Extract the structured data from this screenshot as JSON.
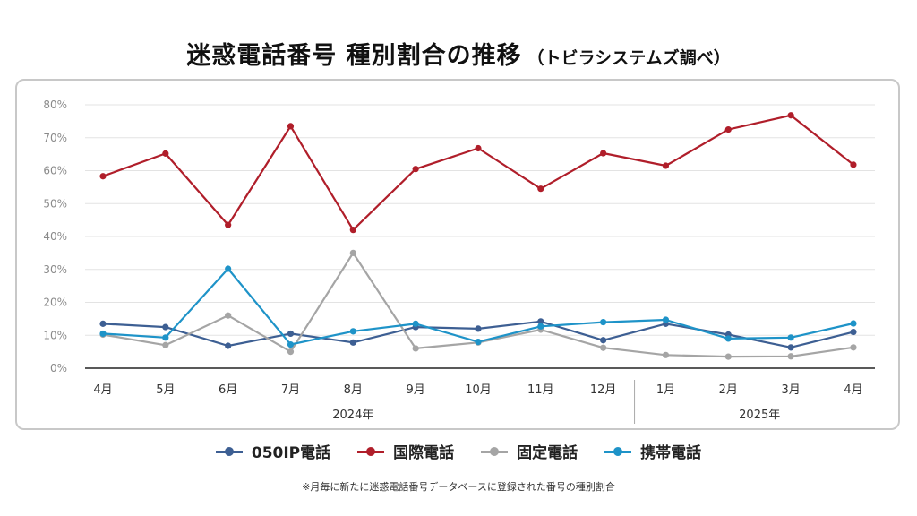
{
  "header": {
    "title": "迷惑電話番号 種別割合の推移",
    "subtitle": "（トビラシステムズ調べ）"
  },
  "chart_data": {
    "type": "line",
    "categories": [
      "4月",
      "5月",
      "6月",
      "7月",
      "8月",
      "9月",
      "10月",
      "11月",
      "12月",
      "1月",
      "2月",
      "3月",
      "4月"
    ],
    "year_groups": [
      {
        "label": "2024年",
        "from": 0,
        "to": 8
      },
      {
        "label": "2025年",
        "from": 9,
        "to": 12
      }
    ],
    "yticks": [
      "0%",
      "10%",
      "20%",
      "30%",
      "40%",
      "50%",
      "60%",
      "70%",
      "80%"
    ],
    "ylim": [
      0,
      80
    ],
    "grid": true,
    "legend_position": "bottom",
    "series": [
      {
        "name": "050IP電話",
        "color": "#3d5f93",
        "values": [
          13.5,
          12.5,
          6.8,
          10.5,
          7.8,
          12.5,
          12.0,
          14.2,
          8.5,
          13.5,
          10.2,
          6.3,
          11.0
        ]
      },
      {
        "name": "国際電話",
        "color": "#b01e2a",
        "values": [
          58.3,
          65.2,
          43.5,
          73.5,
          42.0,
          60.5,
          66.8,
          54.5,
          65.3,
          61.5,
          72.5,
          76.8,
          61.8
        ]
      },
      {
        "name": "固定電話",
        "color": "#a5a5a5",
        "values": [
          10.2,
          7.0,
          16.0,
          5.0,
          35.0,
          6.0,
          7.8,
          11.7,
          6.2,
          4.0,
          3.5,
          3.6,
          6.3
        ]
      },
      {
        "name": "携帯電話",
        "color": "#1e93c8",
        "values": [
          10.5,
          9.3,
          30.2,
          7.2,
          11.2,
          13.5,
          8.0,
          12.7,
          14.0,
          14.7,
          9.0,
          9.3,
          13.6
        ]
      }
    ]
  },
  "footnote": "※月毎に新たに迷惑電話番号データベースに登録された番号の種別割合"
}
